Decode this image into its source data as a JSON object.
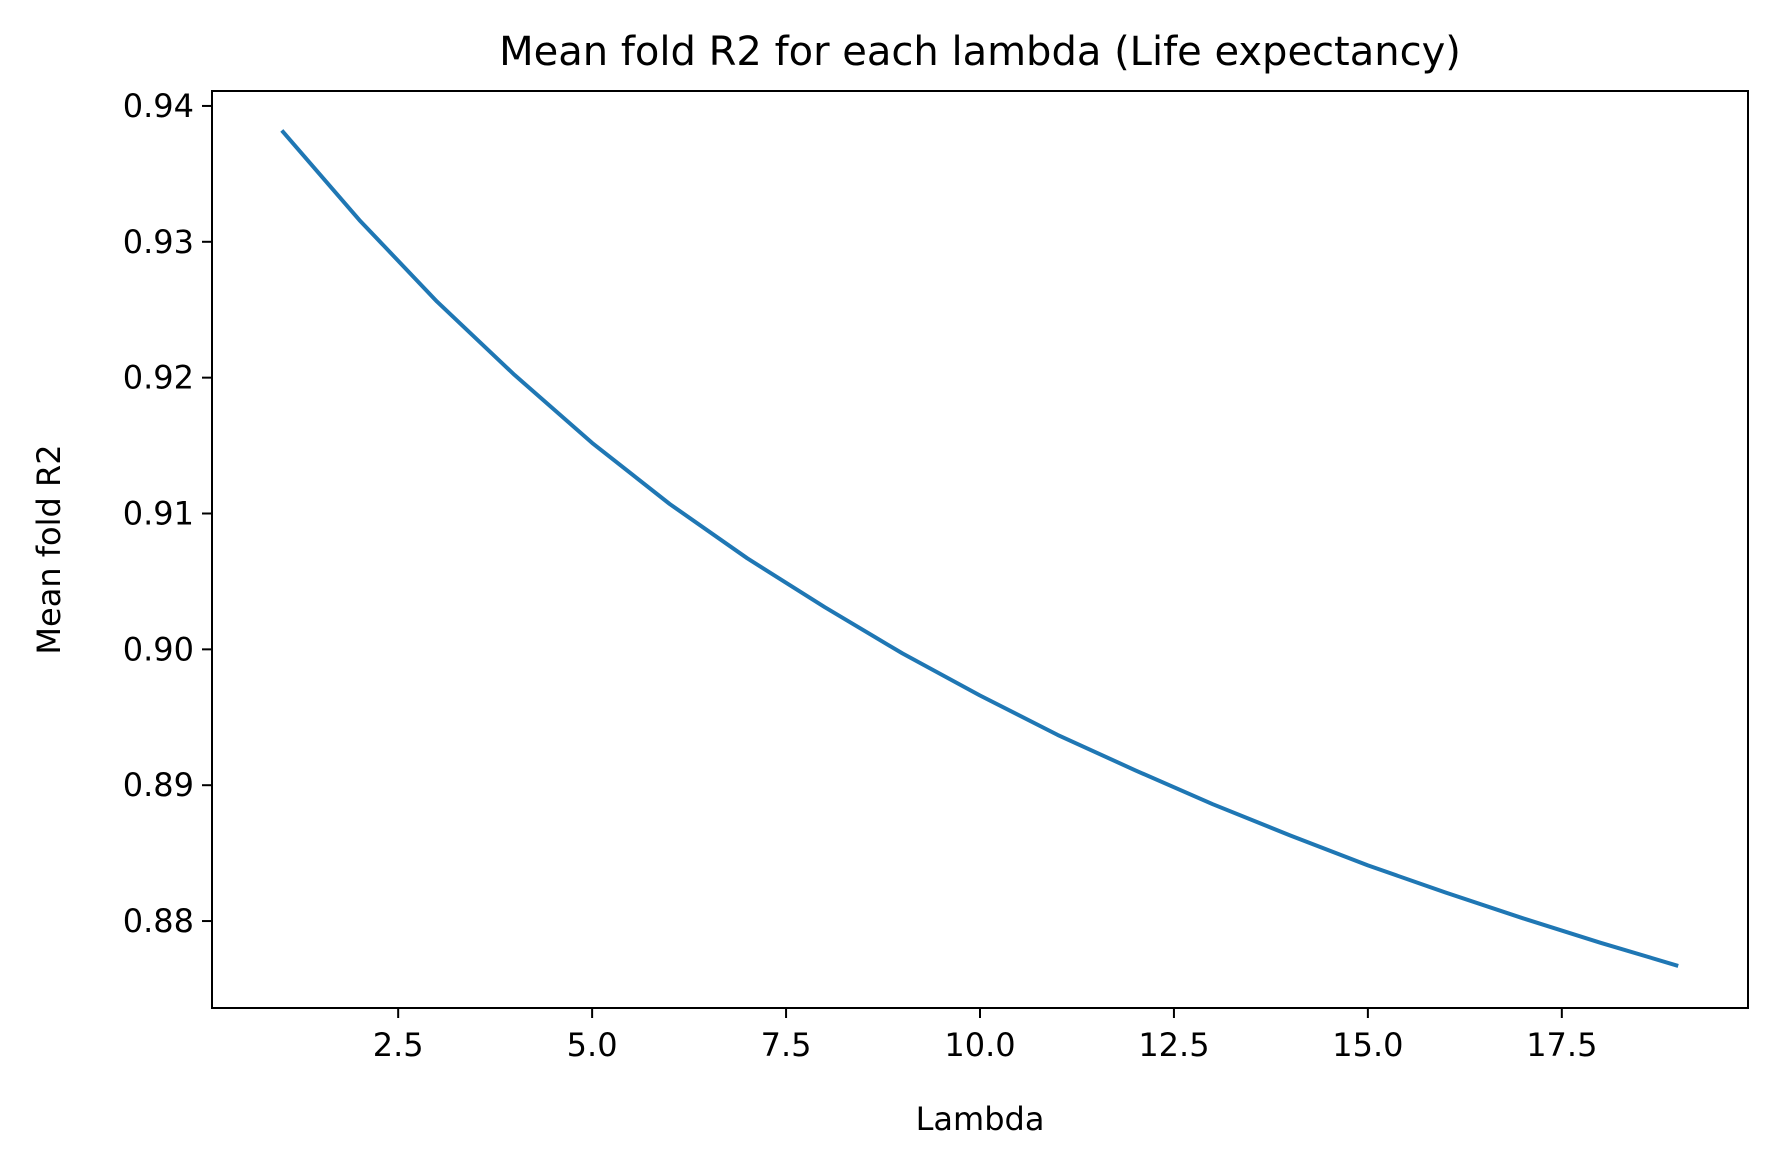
{
  "chart_data": {
    "type": "line",
    "title": "Mean fold R2 for each lambda (Life expectancy)",
    "xlabel": "Lambda",
    "ylabel": "Mean fold R2",
    "xlim": [
      0.1,
      19.9
    ],
    "ylim": [
      0.8736,
      0.9411
    ],
    "xticks": [
      2.5,
      5.0,
      7.5,
      10.0,
      12.5,
      15.0,
      17.5
    ],
    "xtick_labels": [
      "2.5",
      "5.0",
      "7.5",
      "10.0",
      "12.5",
      "15.0",
      "17.5"
    ],
    "yticks": [
      0.88,
      0.89,
      0.9,
      0.91,
      0.92,
      0.93,
      0.94
    ],
    "ytick_labels": [
      "0.88",
      "0.89",
      "0.90",
      "0.91",
      "0.92",
      "0.93",
      "0.94"
    ],
    "grid": false,
    "series": [
      {
        "color": "#1f77b4",
        "x": [
          1,
          2,
          3,
          4,
          5,
          6,
          7,
          8,
          9,
          10,
          11,
          12,
          13,
          14,
          15,
          16,
          17,
          18,
          19
        ],
        "y": [
          0.9382,
          0.9316,
          0.9256,
          0.9202,
          0.9152,
          0.9107,
          0.9067,
          0.9031,
          0.8997,
          0.8966,
          0.8937,
          0.8911,
          0.8886,
          0.8863,
          0.8841,
          0.8821,
          0.8802,
          0.8784,
          0.8767
        ]
      }
    ]
  }
}
